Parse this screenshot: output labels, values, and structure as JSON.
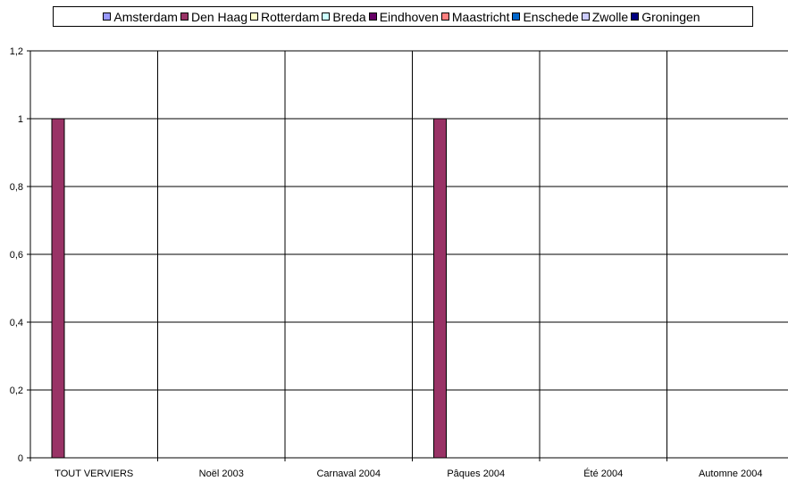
{
  "chart_data": {
    "type": "bar",
    "title": "",
    "xlabel": "",
    "ylabel": "",
    "categories": [
      "TOUT VERVIERS",
      "Noël 2003",
      "Carnaval 2004",
      "Pâques 2004",
      "Été 2004",
      "Automne 2004"
    ],
    "series": [
      {
        "name": "Amsterdam",
        "color": "#9999ff",
        "values": [
          0,
          0,
          0,
          0,
          0,
          0
        ]
      },
      {
        "name": "Den Haag",
        "color": "#993366",
        "values": [
          1,
          0,
          0,
          1,
          0,
          0
        ]
      },
      {
        "name": "Rotterdam",
        "color": "#ffffcc",
        "values": [
          0,
          0,
          0,
          0,
          0,
          0
        ]
      },
      {
        "name": "Breda",
        "color": "#ccffff",
        "values": [
          0,
          0,
          0,
          0,
          0,
          0
        ]
      },
      {
        "name": "Eindhoven",
        "color": "#660066",
        "values": [
          0,
          0,
          0,
          0,
          0,
          0
        ]
      },
      {
        "name": "Maastricht",
        "color": "#ff8080",
        "values": [
          0,
          0,
          0,
          0,
          0,
          0
        ]
      },
      {
        "name": "Enschede",
        "color": "#0066cc",
        "values": [
          0,
          0,
          0,
          0,
          0,
          0
        ]
      },
      {
        "name": "Zwolle",
        "color": "#ccccff",
        "values": [
          0,
          0,
          0,
          0,
          0,
          0
        ]
      },
      {
        "name": "Groningen",
        "color": "#000080",
        "values": [
          0,
          0,
          0,
          0,
          0,
          0
        ]
      }
    ],
    "ylim": [
      0,
      1.2
    ],
    "yticks": [
      "0",
      "0,2",
      "0,4",
      "0,6",
      "0,8",
      "1",
      "1,2"
    ],
    "grid": true,
    "legend_position": "top"
  }
}
